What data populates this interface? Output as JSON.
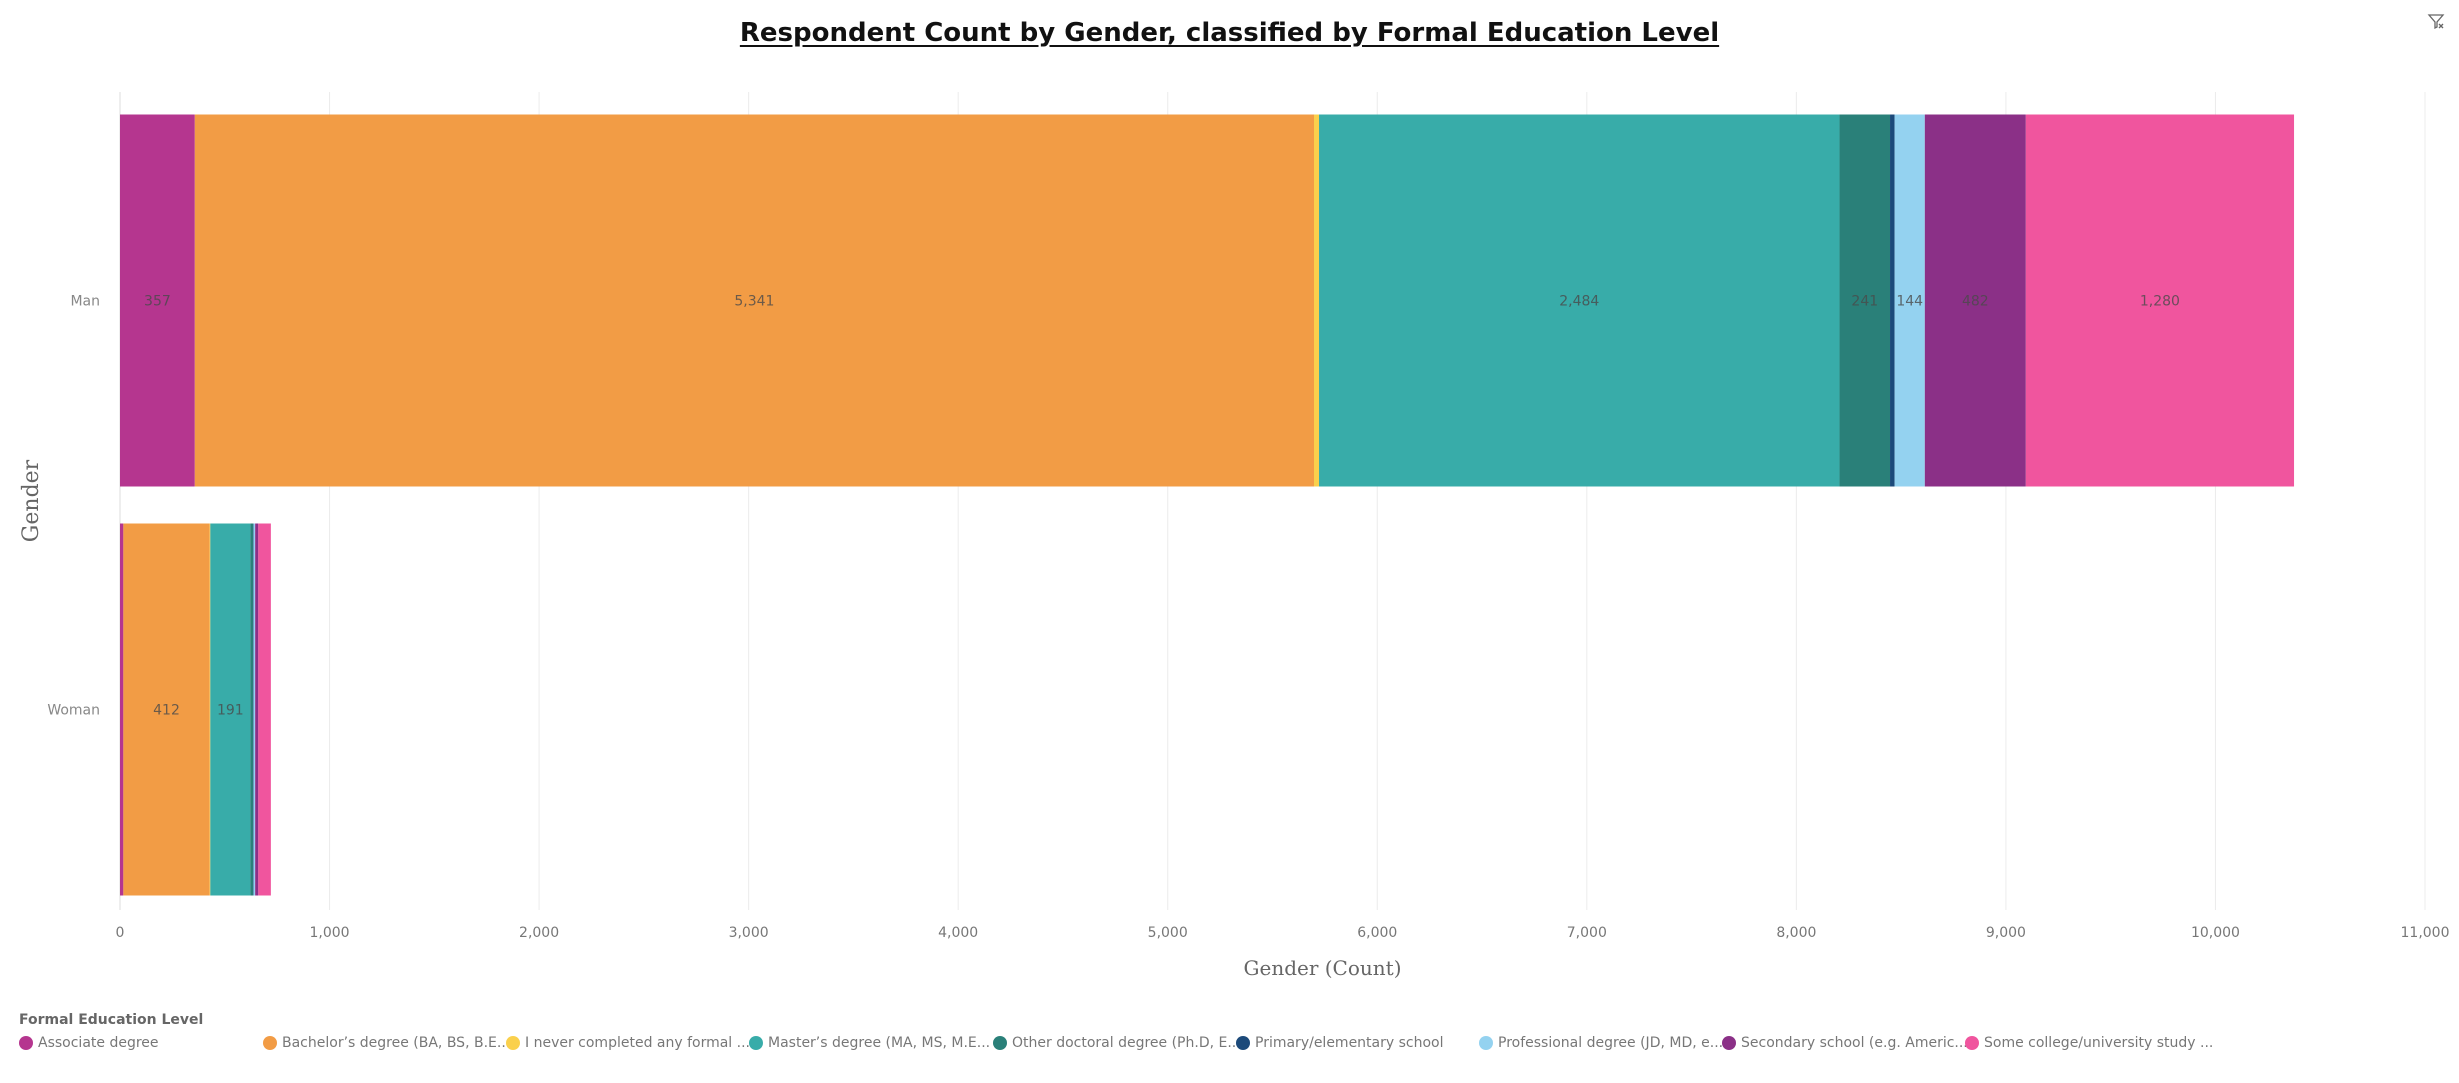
{
  "toolbar": {
    "filter_icon": "filter-icon"
  },
  "chart_data": {
    "type": "bar",
    "orientation": "horizontal",
    "stacked": true,
    "title": "Respondent Count by Gender, classified by Formal Education Level",
    "xlabel": "Gender (Count)",
    "ylabel": "Gender",
    "xlim": [
      0,
      11000
    ],
    "x_ticks": [
      "0",
      "1,000",
      "2,000",
      "3,000",
      "4,000",
      "5,000",
      "6,000",
      "7,000",
      "8,000",
      "9,000",
      "10,000",
      "11,000"
    ],
    "grid": true,
    "categories": [
      "Man",
      "Woman"
    ],
    "legend_title": "Formal Education Level",
    "legend_position": "bottom",
    "series": [
      {
        "name": "Associate degree",
        "legend_label": "Associate degree",
        "color": "#b5368f",
        "values": [
          357,
          16
        ],
        "labels": [
          "357",
          ""
        ]
      },
      {
        "name": "Bachelor’s degree (BA, BS, B.E...",
        "legend_label": "Bachelor’s degree (BA, BS, B.E...",
        "color": "#f29c45",
        "values": [
          5341,
          412
        ],
        "labels": [
          "5,341",
          "412"
        ]
      },
      {
        "name": "I never completed any formal ...",
        "legend_label": "I never completed any formal ...",
        "color": "#fad04c",
        "values": [
          24,
          3
        ],
        "labels": [
          "",
          ""
        ]
      },
      {
        "name": "Master’s degree (MA, MS, M.E...",
        "legend_label": "Master’s degree (MA, MS, M.E...",
        "color": "#38aca9",
        "values": [
          2484,
          191
        ],
        "labels": [
          "2,484",
          "191"
        ]
      },
      {
        "name": "Other doctoral degree (Ph.D, E...",
        "legend_label": "Other doctoral degree (Ph.D, E...",
        "color": "#2a8079",
        "values": [
          241,
          13
        ],
        "labels": [
          "241",
          ""
        ]
      },
      {
        "name": "Primary/elementary school",
        "legend_label": "Primary/elementary school",
        "color": "#1c4a7a",
        "values": [
          22,
          2
        ],
        "labels": [
          "",
          ""
        ]
      },
      {
        "name": "Professional degree (JD, MD, e...",
        "legend_label": "Professional degree (JD, MD, e...",
        "color": "#94d2f0",
        "values": [
          144,
          8
        ],
        "labels": [
          "144",
          ""
        ]
      },
      {
        "name": "Secondary school (e.g. Americ...",
        "legend_label": "Secondary school (e.g. Americ...",
        "color": "#8b3087",
        "values": [
          482,
          15
        ],
        "labels": [
          "482",
          ""
        ]
      },
      {
        "name": "Some college/university study ...",
        "legend_label": "Some college/university study ...",
        "color": "#f0559e",
        "values": [
          1280,
          60
        ],
        "labels": [
          "1,280",
          ""
        ]
      }
    ]
  }
}
